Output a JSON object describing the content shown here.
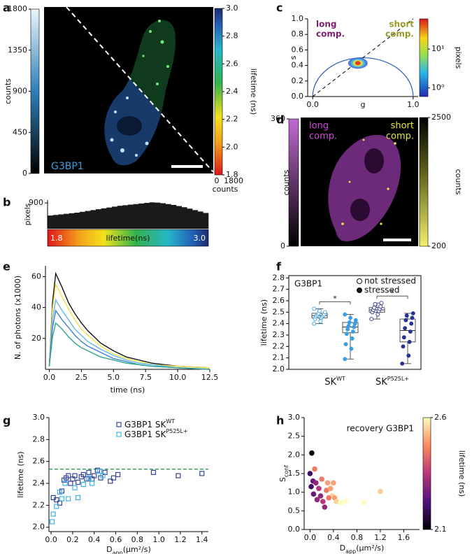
{
  "panel_labels": [
    "a",
    "b",
    "c",
    "d",
    "e",
    "f",
    "g",
    "h"
  ],
  "images": [
    {
      "label": "G3BP1",
      "left_colorbar": {
        "label": "counts",
        "lim": [
          0,
          1800
        ],
        "ticks": [
          0,
          450,
          900,
          1350,
          1800
        ]
      },
      "right_colorbar": {
        "label": "lifetime (ns)",
        "lim": [
          1.8,
          3.0
        ],
        "ticks": [
          1.8,
          {
            "value": 2,
            "label": "2.0"
          },
          2.2,
          2.4,
          2.6,
          2.8,
          {
            "value": 3,
            "label": "3.0"
          }
        ]
      },
      "bottom_colorbar": {
        "label": "counts",
        "lim": [
          0,
          1800
        ],
        "ticks": [
          0,
          1800
        ]
      }
    },
    {
      "annotations": [
        [
          "long",
          "comp."
        ],
        [
          "short",
          "comp."
        ]
      ],
      "left_colorbar": {
        "label": "counts",
        "lim": [
          0,
          360
        ],
        "ticks": [
          0,
          360
        ]
      },
      "right_colorbar": {
        "label": "counts",
        "lim": [
          200,
          2500
        ],
        "ticks": [
          200,
          2500
        ]
      }
    }
  ],
  "chart_data": [
    {
      "type": "histogram",
      "y_label": "pixels",
      "x_label": "lifetime(ns)",
      "color": "#1a1a1a",
      "bins": [
        1.8,
        1.84,
        1.88,
        1.92,
        1.96,
        2.0,
        2.04,
        2.08,
        2.12,
        2.16,
        2.2,
        2.24,
        2.28,
        2.32,
        2.36,
        2.4,
        2.44,
        2.48,
        2.52,
        2.56,
        2.6,
        2.64,
        2.68,
        2.72,
        2.76,
        2.8,
        2.84,
        2.88,
        2.92,
        2.96,
        3.0
      ],
      "values": [
        460,
        480,
        500,
        520,
        540,
        560,
        590,
        620,
        650,
        680,
        710,
        740,
        770,
        800,
        820,
        840,
        860,
        880,
        900,
        920,
        910,
        890,
        860,
        830,
        790,
        750,
        700,
        650,
        600,
        550
      ],
      "xlim": [
        1.8,
        3.0
      ],
      "xticks": [
        1.8,
        {
          "value": 3,
          "label": "3.0"
        }
      ],
      "ylim": [
        0,
        1000
      ],
      "yticks": [
        900
      ]
    },
    {
      "type": "phasor",
      "y_label": "s",
      "x_label": "g",
      "xlim": [
        -0.05,
        1.05
      ],
      "xticks": [
        {
          "value": 0,
          "label": "0.0"
        },
        {
          "value": 1,
          "label": "1.0"
        }
      ],
      "ylim": [
        0,
        1.0
      ],
      "yticks": [
        {
          "value": 0,
          "label": "0.0"
        },
        0.2,
        0.4,
        0.6,
        0.8,
        {
          "value": 1,
          "label": "1.0"
        }
      ],
      "cluster": {
        "g": 0.45,
        "s": 0.43
      },
      "annotations": [
        [
          "long",
          "comp."
        ],
        [
          "short",
          "comp."
        ]
      ],
      "annotation_colors": [
        "#7a1f6e",
        "#9a9a2a"
      ],
      "colorbar": {
        "label": "pixels",
        "lim": [
          0.6,
          60
        ],
        "log": true,
        "ticks": [
          {
            "value": 1,
            "label": "10⁰"
          },
          {
            "value": 10,
            "label": "10¹"
          }
        ]
      }
    },
    {
      "type": "line",
      "y_label": "N. of photons (x1000)",
      "x_label": "time (ns)",
      "x": [
        0,
        0.25,
        0.5,
        1,
        1.5,
        2,
        2.5,
        3,
        4,
        5,
        6,
        7,
        8,
        10,
        12.5
      ],
      "series": [
        {
          "color": "#111111",
          "values": [
            2,
            43,
            62,
            53,
            43,
            36,
            30,
            25,
            17,
            12,
            8,
            6,
            4,
            2,
            1
          ]
        },
        {
          "color": "#f2e14c",
          "values": [
            2,
            39,
            55,
            47,
            39,
            32,
            26,
            22,
            15,
            10,
            7,
            5,
            3,
            2,
            1
          ]
        },
        {
          "color": "#5fb8e8",
          "values": [
            2,
            32,
            45,
            38,
            32,
            26,
            22,
            18,
            13,
            9,
            6,
            4,
            3,
            1,
            0
          ]
        },
        {
          "color": "#3f7fcf",
          "values": [
            2,
            27,
            38,
            32,
            27,
            22,
            18,
            15,
            11,
            7,
            5,
            3,
            2,
            1,
            0
          ]
        },
        {
          "color": "#2fa58a",
          "values": [
            2,
            21,
            30,
            26,
            21,
            17,
            14,
            12,
            8,
            6,
            4,
            3,
            2,
            1,
            0
          ]
        }
      ],
      "xlim": [
        -0.3,
        12.5
      ],
      "xticks": [
        {
          "value": 0,
          "label": "0.0"
        },
        2.5,
        {
          "value": 5,
          "label": "5.0"
        },
        7.5,
        {
          "value": 10,
          "label": "10.0"
        },
        12.5
      ],
      "ylim": [
        0,
        67
      ],
      "yticks": [
        20,
        40,
        60
      ]
    },
    {
      "type": "box",
      "title": "G3BP1",
      "y_label": "lifetime (ns)",
      "categories": [
        "SK",
        "SK"
      ],
      "category_sups": [
        "WT",
        "P525L+"
      ],
      "category_colors": [
        "#3a9ee4",
        "#26348f"
      ],
      "series": [
        {
          "name": "not stressed",
          "marker": "open",
          "boxes": [
            {
              "min": 2.4,
              "q1": 2.45,
              "median": 2.47,
              "q3": 2.49,
              "max": 2.53
            },
            {
              "min": 2.44,
              "q1": 2.5,
              "median": 2.52,
              "q3": 2.54,
              "max": 2.58
            }
          ],
          "points": [
            [
              2.4,
              2.42,
              2.44,
              2.45,
              2.46,
              2.46,
              2.47,
              2.47,
              2.48,
              2.48,
              2.49,
              2.5,
              2.51,
              2.53
            ],
            [
              2.44,
              2.48,
              2.5,
              2.51,
              2.52,
              2.53,
              2.54,
              2.55,
              2.57,
              2.58
            ]
          ]
        },
        {
          "name": "stressed",
          "marker": "filled",
          "boxes": [
            {
              "min": 2.09,
              "q1": 2.32,
              "median": 2.37,
              "q3": 2.41,
              "max": 2.48
            },
            {
              "min": 2.05,
              "q1": 2.24,
              "median": 2.34,
              "q3": 2.44,
              "max": 2.49
            }
          ],
          "points": [
            [
              2.09,
              2.18,
              2.22,
              2.27,
              2.31,
              2.33,
              2.35,
              2.37,
              2.38,
              2.4,
              2.41,
              2.43,
              2.45,
              2.48
            ],
            [
              2.05,
              2.12,
              2.2,
              2.24,
              2.28,
              2.33,
              2.36,
              2.4,
              2.43,
              2.45,
              2.47,
              2.49
            ]
          ]
        }
      ],
      "significance": [
        "*",
        "*"
      ],
      "ylim": [
        2.0,
        2.82
      ],
      "yticks": [
        {
          "value": 2,
          "label": "2.0"
        },
        2.1,
        2.2,
        2.3,
        2.4,
        2.5,
        2.6,
        2.7,
        2.8
      ]
    },
    {
      "type": "scatter",
      "marker": "square",
      "y_label": "lifetime (ns)",
      "x_label": {
        "main": "D",
        "sub": "app",
        "rest": "(µm²/s)"
      },
      "series": [
        {
          "name": "G3BP1 SK",
          "name_sup": "WT",
          "color": "#34449a",
          "x": [
            0.02,
            0.05,
            0.08,
            0.1,
            0.12,
            0.14,
            0.16,
            0.18,
            0.2,
            0.22,
            0.25,
            0.28,
            0.3,
            0.33,
            0.35,
            0.38,
            0.4,
            0.43,
            0.46,
            0.5,
            0.55,
            0.58,
            0.62,
            0.95,
            1.18,
            1.4
          ],
          "y": [
            2.27,
            2.25,
            2.22,
            2.33,
            2.43,
            2.45,
            2.47,
            2.4,
            2.44,
            2.47,
            2.41,
            2.46,
            2.48,
            2.44,
            2.5,
            2.44,
            2.47,
            2.52,
            2.45,
            2.5,
            2.42,
            2.45,
            2.48,
            2.5,
            2.47,
            2.49
          ]
        },
        {
          "name": "G3BP1 SK",
          "name_sup": "P525L+",
          "color": "#3fb3e8",
          "x": [
            0.01,
            0.02,
            0.05,
            0.08,
            0.1,
            0.13,
            0.16,
            0.22,
            0.25,
            0.3,
            0.35,
            0.38,
            0.45,
            0.48
          ],
          "y": [
            2.05,
            2.12,
            2.19,
            2.32,
            2.26,
            2.4,
            2.26,
            2.36,
            2.27,
            2.39,
            2.45,
            2.4,
            2.51,
            2.47
          ]
        }
      ],
      "hline": 2.53,
      "hline_color": "#2ca05a",
      "xlim": [
        -0.02,
        1.46
      ],
      "xticks": [
        {
          "value": 0,
          "label": "0.0"
        },
        0.2,
        0.4,
        0.6,
        0.8,
        {
          "value": 1,
          "label": "1.0"
        },
        1.2,
        1.4
      ],
      "ylim": [
        1.96,
        3.0
      ],
      "yticks": [
        {
          "value": 2,
          "label": "2.0"
        },
        2.2,
        2.4,
        2.6,
        2.8,
        {
          "value": 3,
          "label": "3.0"
        }
      ]
    },
    {
      "type": "scatter",
      "marker": "circle",
      "annotation": "recovery G3BP1",
      "y_label": {
        "main": "S",
        "sub": "conf"
      },
      "x_label": {
        "main": "D",
        "sub": "app",
        "rest": "(µm²/s)"
      },
      "x": [
        0.03,
        0.0,
        0.08,
        0.05,
        0.1,
        0.02,
        0.06,
        0.12,
        0.18,
        0.22,
        0.25,
        0.28,
        0.2,
        0.3,
        0.35,
        0.38,
        0.42,
        0.45,
        0.52,
        0.6,
        0.92,
        1.2,
        0.15,
        0.32,
        0.4
      ],
      "y": [
        2.05,
        1.5,
        1.62,
        1.3,
        1.25,
        1.15,
        0.95,
        0.8,
        0.9,
        0.75,
        0.6,
        1.05,
        1.35,
        1.25,
        1.1,
        0.9,
        0.85,
        0.75,
        0.72,
        0.75,
        0.73,
        1.02,
        1.1,
        0.85,
        1.25
      ],
      "color_values": [
        2.1,
        2.2,
        2.45,
        2.25,
        2.3,
        2.2,
        2.25,
        2.3,
        2.3,
        2.35,
        2.3,
        2.45,
        2.45,
        2.5,
        2.5,
        2.55,
        2.5,
        2.55,
        2.6,
        2.6,
        2.6,
        2.55,
        2.35,
        2.45,
        2.5
      ],
      "colorbar": {
        "label": "lifetime (ns)",
        "lim": [
          2.1,
          2.6
        ],
        "ticks": [
          2.1,
          2.6
        ]
      },
      "xlim": [
        -0.1,
        1.87
      ],
      "xticks": [
        {
          "value": 0,
          "label": "0.0"
        },
        0.4,
        0.8,
        1.2,
        1.6
      ],
      "ylim": [
        0,
        3.0
      ],
      "yticks": [
        {
          "value": 0,
          "label": "0.0"
        },
        0.5,
        {
          "value": 1,
          "label": "1.0"
        },
        1.5,
        {
          "value": 2,
          "label": "2.0"
        },
        2.5,
        {
          "value": 3,
          "label": "3.0"
        }
      ]
    }
  ]
}
